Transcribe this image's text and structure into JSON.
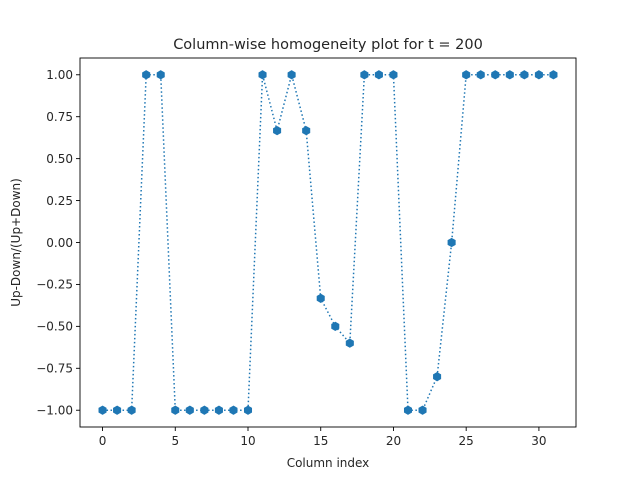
{
  "chart_data": {
    "type": "line",
    "title": "Column-wise homogeneity plot for t = 200",
    "xlabel": "Column index",
    "ylabel": "Up-Down/(Up+Down)",
    "xlim": [
      -1.55,
      32.55
    ],
    "ylim": [
      -1.1,
      1.1
    ],
    "x_ticks": [
      0,
      5,
      10,
      15,
      20,
      25,
      30
    ],
    "x_tick_labels": [
      "0",
      "5",
      "10",
      "15",
      "20",
      "25",
      "30"
    ],
    "y_ticks": [
      1.0,
      0.75,
      0.5,
      0.25,
      0.0,
      -0.25,
      -0.5,
      -0.75,
      -1.0
    ],
    "y_tick_labels": [
      "1.00",
      "0.75",
      "0.50",
      "0.25",
      "0.00",
      "−0.25",
      "−0.50",
      "−0.75",
      "−1.00"
    ],
    "grid": false,
    "line_style": "dotted",
    "marker": "hexagon",
    "color": "#1f77b4",
    "series": [
      {
        "x": [
          0,
          1,
          2,
          3,
          4,
          5,
          6,
          7,
          8,
          9,
          10,
          11,
          12,
          13,
          14,
          15,
          16,
          17,
          18,
          19,
          20,
          21,
          22,
          23,
          24,
          25,
          26,
          27,
          28,
          29,
          30,
          31
        ],
        "y": [
          -1,
          -1,
          -1,
          1,
          1,
          -1,
          -1,
          -1,
          -1,
          -1,
          -1,
          1,
          0.667,
          1,
          0.667,
          -0.333,
          -0.5,
          -0.6,
          1,
          1,
          1,
          -1,
          -1,
          -0.8,
          0,
          1,
          1,
          1,
          1,
          1,
          1,
          1
        ]
      }
    ]
  }
}
